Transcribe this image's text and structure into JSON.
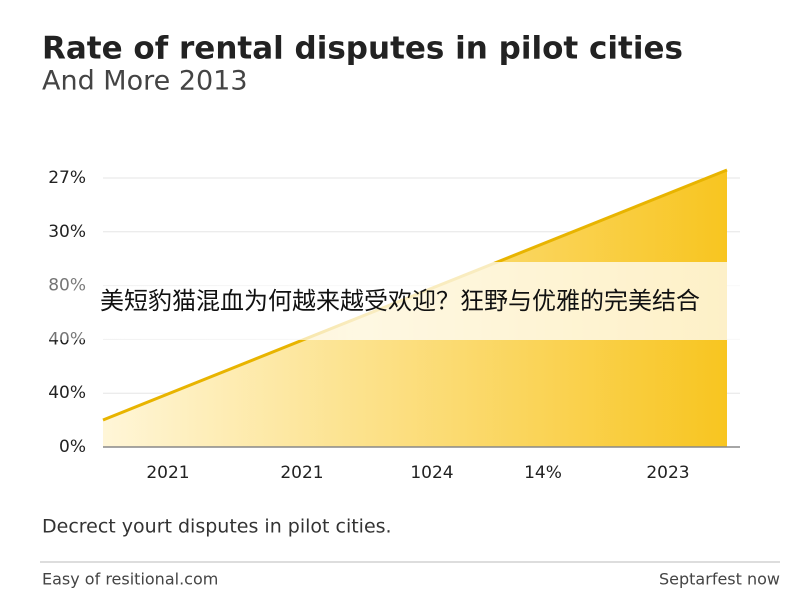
{
  "header": {
    "title": "Rate of rental disputes in pilot cities",
    "subtitle": "And More 2013"
  },
  "axis": {
    "y_labels": [
      "27%",
      "30%",
      "80%",
      "40%",
      "40%",
      "0%"
    ],
    "x_labels": [
      "2021",
      "2021",
      "1024",
      "14%",
      "2023"
    ]
  },
  "caption": "Decrect yourt disputes in pilot cities.",
  "overlay": "美短豹猫混血为何越来越受欢迎？狂野与优雅的完美结合",
  "footer": {
    "left": "Easy of resitional.com",
    "right": "Septarfest now"
  }
}
